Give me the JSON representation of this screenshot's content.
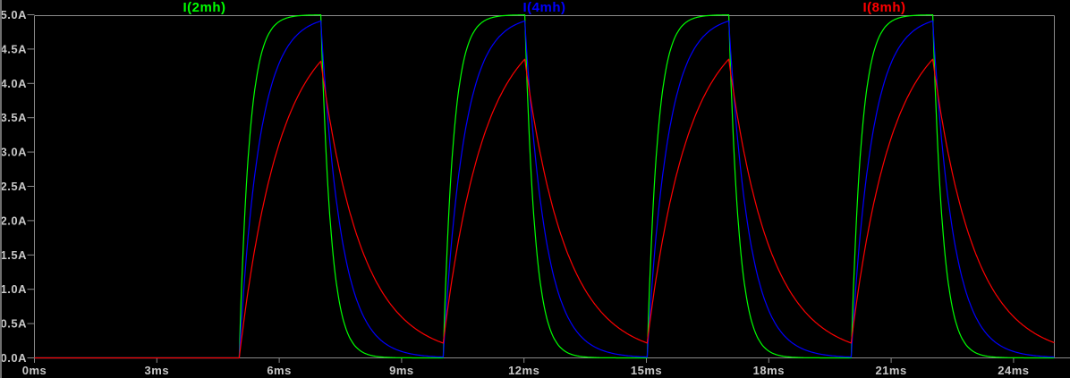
{
  "colors": {
    "background": "#000000",
    "frame": "#8a8a8a",
    "tick_text": "#c8c8c8",
    "window_edge": "#6f6f6f"
  },
  "chart_data": {
    "type": "line",
    "title": "",
    "legend_position": "top",
    "grid": false,
    "x_axis": {
      "unit": "ms",
      "min": 0,
      "max": 25,
      "tick_values": [
        0,
        3,
        6,
        9,
        12,
        15,
        18,
        21,
        24
      ],
      "tick_labels": [
        "0ms",
        "3ms",
        "6ms",
        "9ms",
        "12ms",
        "15ms",
        "18ms",
        "21ms",
        "24ms"
      ]
    },
    "y_axis": {
      "unit": "A",
      "min": 0,
      "max": 5,
      "tick_values": [
        5,
        4.5,
        4,
        3.5,
        3,
        2.5,
        2,
        1.5,
        1,
        0.5,
        0
      ],
      "tick_labels": [
        "5.0A",
        "4.5A",
        "4.0A",
        "3.5A",
        "3.0A",
        "2.5A",
        "2.0A",
        "1.5A",
        "1.0A",
        "0.5A",
        "0.0A"
      ]
    },
    "drive_pulse": {
      "amplitude_A": 5,
      "delay_ms": 5,
      "on_ms": 2,
      "period_ms": 5
    },
    "series": [
      {
        "name": "I(2mh)",
        "color": "#00ff00",
        "tau_ms": 0.25,
        "peak_A": 5.0
      },
      {
        "name": "I(4mh)",
        "color": "#0000ff",
        "tau_ms": 0.5,
        "peak_A": 4.9
      },
      {
        "name": "I(8mh)",
        "color": "#ff0000",
        "tau_ms": 1.0,
        "peak_A": 4.35
      }
    ]
  }
}
